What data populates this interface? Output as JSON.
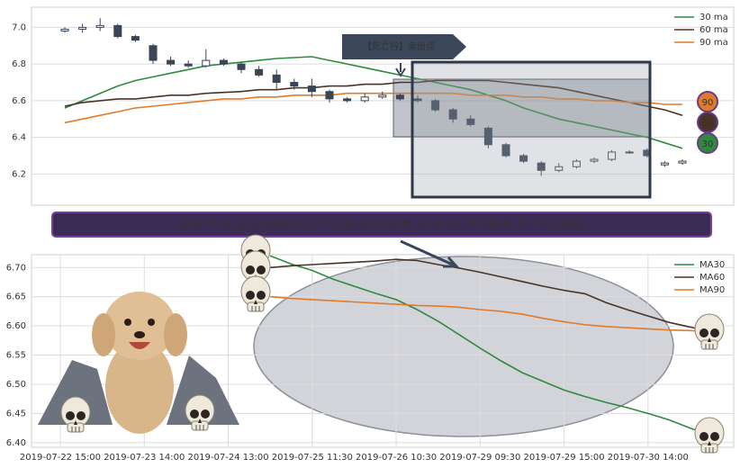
{
  "chart_data": [
    {
      "type": "candlestick",
      "note": "2019-07-24 14:00:00至2019-07-30 15:00:00 30小时,60小时,90小时均线形成【死亡谷】卖出点",
      "callout": "【死亡谷】卖出点",
      "ylim": [
        6.03,
        7.11
      ],
      "yticks": [
        6.2,
        6.4,
        6.6,
        6.8,
        {
          "value": 7.0,
          "label": "7.0"
        }
      ],
      "grid": true,
      "legend": "top-right",
      "up_color": "#ffffff",
      "down_color": "#3a4556",
      "candles": [
        [
          6.98,
          7.0,
          6.97,
          6.99
        ],
        [
          6.99,
          7.02,
          6.97,
          7.0
        ],
        [
          7.0,
          7.05,
          6.98,
          7.01
        ],
        [
          7.01,
          7.02,
          6.94,
          6.95
        ],
        [
          6.95,
          6.96,
          6.92,
          6.93
        ],
        [
          6.9,
          6.91,
          6.8,
          6.82
        ],
        [
          6.82,
          6.84,
          6.79,
          6.8
        ],
        [
          6.8,
          6.82,
          6.78,
          6.79
        ],
        [
          6.79,
          6.88,
          6.78,
          6.82
        ],
        [
          6.82,
          6.83,
          6.79,
          6.8
        ],
        [
          6.8,
          6.81,
          6.75,
          6.77
        ],
        [
          6.77,
          6.79,
          6.73,
          6.74
        ],
        [
          6.74,
          6.77,
          6.66,
          6.7
        ],
        [
          6.7,
          6.72,
          6.66,
          6.68
        ],
        [
          6.68,
          6.72,
          6.62,
          6.65
        ],
        [
          6.65,
          6.66,
          6.59,
          6.61
        ],
        [
          6.61,
          6.62,
          6.59,
          6.6
        ],
        [
          6.6,
          6.64,
          6.59,
          6.62
        ],
        [
          6.62,
          6.65,
          6.61,
          6.63
        ],
        [
          6.63,
          6.64,
          6.6,
          6.61
        ],
        [
          6.61,
          6.63,
          6.59,
          6.6
        ],
        [
          6.6,
          6.61,
          6.54,
          6.55
        ],
        [
          6.55,
          6.56,
          6.48,
          6.5
        ],
        [
          6.5,
          6.52,
          6.46,
          6.47
        ],
        [
          6.45,
          6.46,
          6.34,
          6.36
        ],
        [
          6.36,
          6.37,
          6.29,
          6.3
        ],
        [
          6.3,
          6.31,
          6.26,
          6.27
        ],
        [
          6.26,
          6.27,
          6.19,
          6.22
        ],
        [
          6.22,
          6.26,
          6.21,
          6.24
        ],
        [
          6.24,
          6.28,
          6.23,
          6.27
        ],
        [
          6.27,
          6.29,
          6.26,
          6.28
        ],
        [
          6.28,
          6.33,
          6.27,
          6.32
        ],
        [
          6.32,
          6.33,
          6.31,
          6.32
        ],
        [
          6.33,
          6.34,
          6.29,
          6.3
        ],
        [
          6.25,
          6.27,
          6.24,
          6.26
        ],
        [
          6.26,
          6.28,
          6.25,
          6.27
        ]
      ],
      "series": [
        {
          "name": "30 ma",
          "color": "#2e8b3e",
          "end_label": "30",
          "values": [
            6.56,
            6.6,
            6.64,
            6.68,
            6.71,
            6.73,
            6.75,
            6.77,
            6.79,
            6.8,
            6.81,
            6.82,
            6.83,
            6.835,
            6.84,
            6.82,
            6.8,
            6.78,
            6.76,
            6.74,
            6.72,
            6.7,
            6.68,
            6.66,
            6.63,
            6.6,
            6.56,
            6.53,
            6.5,
            6.48,
            6.46,
            6.44,
            6.42,
            6.4,
            6.37,
            6.34
          ]
        },
        {
          "name": "60 ma",
          "color": "#4a3328",
          "end_label": "60",
          "values": [
            6.57,
            6.59,
            6.6,
            6.61,
            6.61,
            6.62,
            6.63,
            6.63,
            6.64,
            6.645,
            6.65,
            6.66,
            6.66,
            6.67,
            6.67,
            6.68,
            6.68,
            6.69,
            6.69,
            6.7,
            6.7,
            6.71,
            6.71,
            6.71,
            6.71,
            6.7,
            6.69,
            6.68,
            6.67,
            6.65,
            6.63,
            6.61,
            6.59,
            6.57,
            6.55,
            6.52
          ]
        },
        {
          "name": "90 ma",
          "color": "#e07b2a",
          "end_label": "90",
          "values": [
            6.48,
            6.5,
            6.52,
            6.54,
            6.56,
            6.57,
            6.58,
            6.59,
            6.6,
            6.61,
            6.61,
            6.62,
            6.62,
            6.63,
            6.63,
            6.63,
            6.64,
            6.64,
            6.64,
            6.64,
            6.64,
            6.64,
            6.64,
            6.63,
            6.63,
            6.63,
            6.62,
            6.62,
            6.61,
            6.61,
            6.6,
            6.6,
            6.59,
            6.59,
            6.58,
            6.58
          ]
        }
      ]
    },
    {
      "type": "line",
      "xlim": [
        -0.343,
        8.02
      ],
      "xticks": [
        {
          "value": 0,
          "label": "2019-07-22 15:00"
        },
        {
          "value": 1,
          "label": "2019-07-23 14:00"
        },
        {
          "value": 2,
          "label": "2019-07-24 13:00"
        },
        {
          "value": 3,
          "label": "2019-07-25 11:30"
        },
        {
          "value": 4,
          "label": "2019-07-26 10:30"
        },
        {
          "value": 5,
          "label": "2019-07-29 09:30"
        },
        {
          "value": 6,
          "label": "2019-07-29 15:00"
        },
        {
          "value": 7,
          "label": "2019-07-30 14:00"
        }
      ],
      "ylim": [
        6.392,
        6.722
      ],
      "yticks": [
        {
          "value": 6.4,
          "label": "6.40"
        },
        6.45,
        {
          "value": 6.5,
          "label": "6.50"
        },
        6.55,
        {
          "value": 6.6,
          "label": "6.60"
        },
        6.65,
        {
          "value": 6.7,
          "label": "6.70"
        }
      ],
      "grid": true,
      "legend": "top-right",
      "x": [
        2.5,
        2.75,
        3,
        3.25,
        3.5,
        3.75,
        4,
        4.25,
        4.5,
        4.75,
        5,
        5.25,
        5.5,
        5.75,
        6,
        6.25,
        6.5,
        6.75,
        7,
        7.25,
        7.5,
        7.75
      ],
      "series": [
        {
          "name": "MA30",
          "color": "#2e8b3e",
          "values": [
            6.72,
            6.706,
            6.695,
            6.68,
            6.668,
            6.656,
            6.645,
            6.628,
            6.608,
            6.585,
            6.562,
            6.54,
            6.52,
            6.505,
            6.49,
            6.479,
            6.469,
            6.46,
            6.45,
            6.439,
            6.425,
            6.412
          ]
        },
        {
          "name": "MA60",
          "color": "#4a3328",
          "values": [
            6.7,
            6.703,
            6.705,
            6.707,
            6.709,
            6.711,
            6.714,
            6.712,
            6.705,
            6.699,
            6.692,
            6.684,
            6.676,
            6.668,
            6.661,
            6.655,
            6.64,
            6.628,
            6.617,
            6.606,
            6.598,
            6.59
          ]
        },
        {
          "name": "MA90",
          "color": "#e07b2a",
          "values": [
            6.65,
            6.647,
            6.645,
            6.643,
            6.641,
            6.639,
            6.637,
            6.635,
            6.634,
            6.632,
            6.628,
            6.625,
            6.62,
            6.613,
            6.607,
            6.602,
            6.599,
            6.597,
            6.595,
            6.593,
            6.592,
            6.59
          ]
        }
      ]
    }
  ]
}
